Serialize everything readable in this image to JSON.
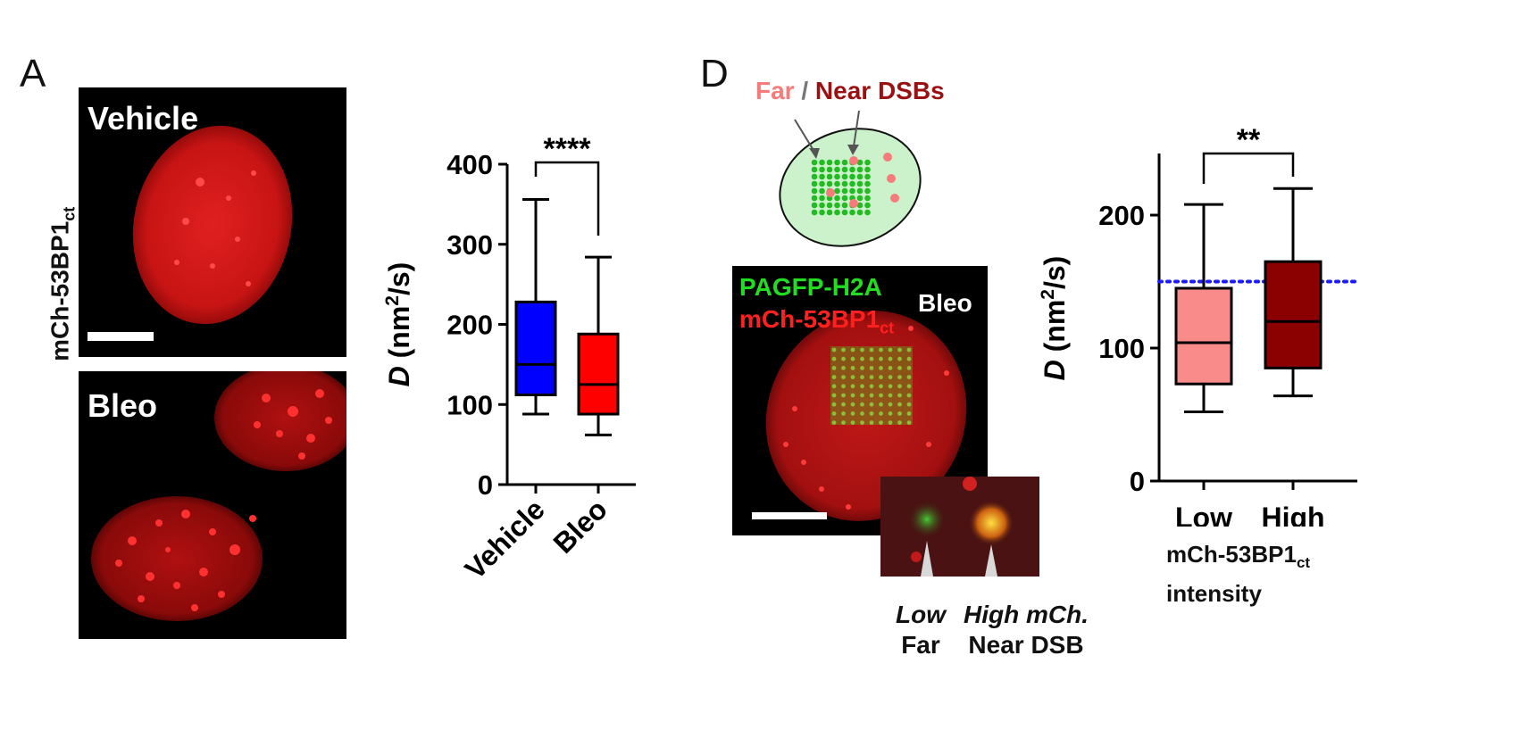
{
  "panel_a": {
    "letter": "A",
    "row_label_main": "mCh-53BP1",
    "row_label_sub": "ct",
    "top_image_label": "Vehicle",
    "bottom_image_label": "Bleo"
  },
  "panel_d": {
    "letter": "D",
    "schematic_far": "Far",
    "schematic_sep": " / ",
    "schematic_near": "Near DSBs",
    "image_label_green": "PAGFP-H2A",
    "image_label_red_main": "mCh-53BP1",
    "image_label_red_sub": "ct",
    "image_label_condition": "Bleo",
    "inset_low_italic": "Low",
    "inset_low_plain": "Far",
    "inset_high_italic": "High mCh.",
    "inset_high_plain": "Near DSB"
  },
  "colors": {
    "vehicle_box": "#0000ff",
    "bleo_box": "#ff0000",
    "low_box": "#f98b8b",
    "high_box": "#8b0000",
    "reference_line": "#1a1aff",
    "schematic_far": "#f77b7b",
    "schematic_near": "#9b1010",
    "schematic_green": "#22bb22"
  },
  "chart_data": [
    {
      "type": "box",
      "ylabel_italic": "D",
      "ylabel_unit_pre": " (nm",
      "ylabel_unit_sup": "2",
      "ylabel_unit_post": "/s)",
      "ylim": [
        0,
        400
      ],
      "yticks": [
        0,
        100,
        200,
        300,
        400
      ],
      "categories": [
        "Vehicle",
        "Bleo"
      ],
      "boxes": [
        {
          "name": "Vehicle",
          "min": 88,
          "q1": 112,
          "median": 150,
          "q3": 228,
          "max": 356,
          "color": "#0000ff"
        },
        {
          "name": "Bleo",
          "min": 62,
          "q1": 88,
          "median": 125,
          "q3": 188,
          "max": 284,
          "color": "#ff0000"
        }
      ],
      "significance": "****"
    },
    {
      "type": "box",
      "ylabel_italic": "D",
      "ylabel_unit_pre": " (nm",
      "ylabel_unit_sup": "2",
      "ylabel_unit_post": "/s)",
      "ylim": [
        0,
        245
      ],
      "yticks": [
        0,
        100,
        200
      ],
      "categories": [
        "Low",
        "High"
      ],
      "xlabel_main": "mCh-53BP1",
      "xlabel_sub": "ct",
      "xlabel_line2": "intensity",
      "boxes": [
        {
          "name": "Low",
          "min": 52,
          "q1": 73,
          "median": 104,
          "q3": 145,
          "max": 208,
          "color": "#f98b8b"
        },
        {
          "name": "High",
          "min": 64,
          "q1": 85,
          "median": 120,
          "q3": 165,
          "max": 220,
          "color": "#8b0000"
        }
      ],
      "reference_line": 150,
      "significance": "**"
    }
  ]
}
